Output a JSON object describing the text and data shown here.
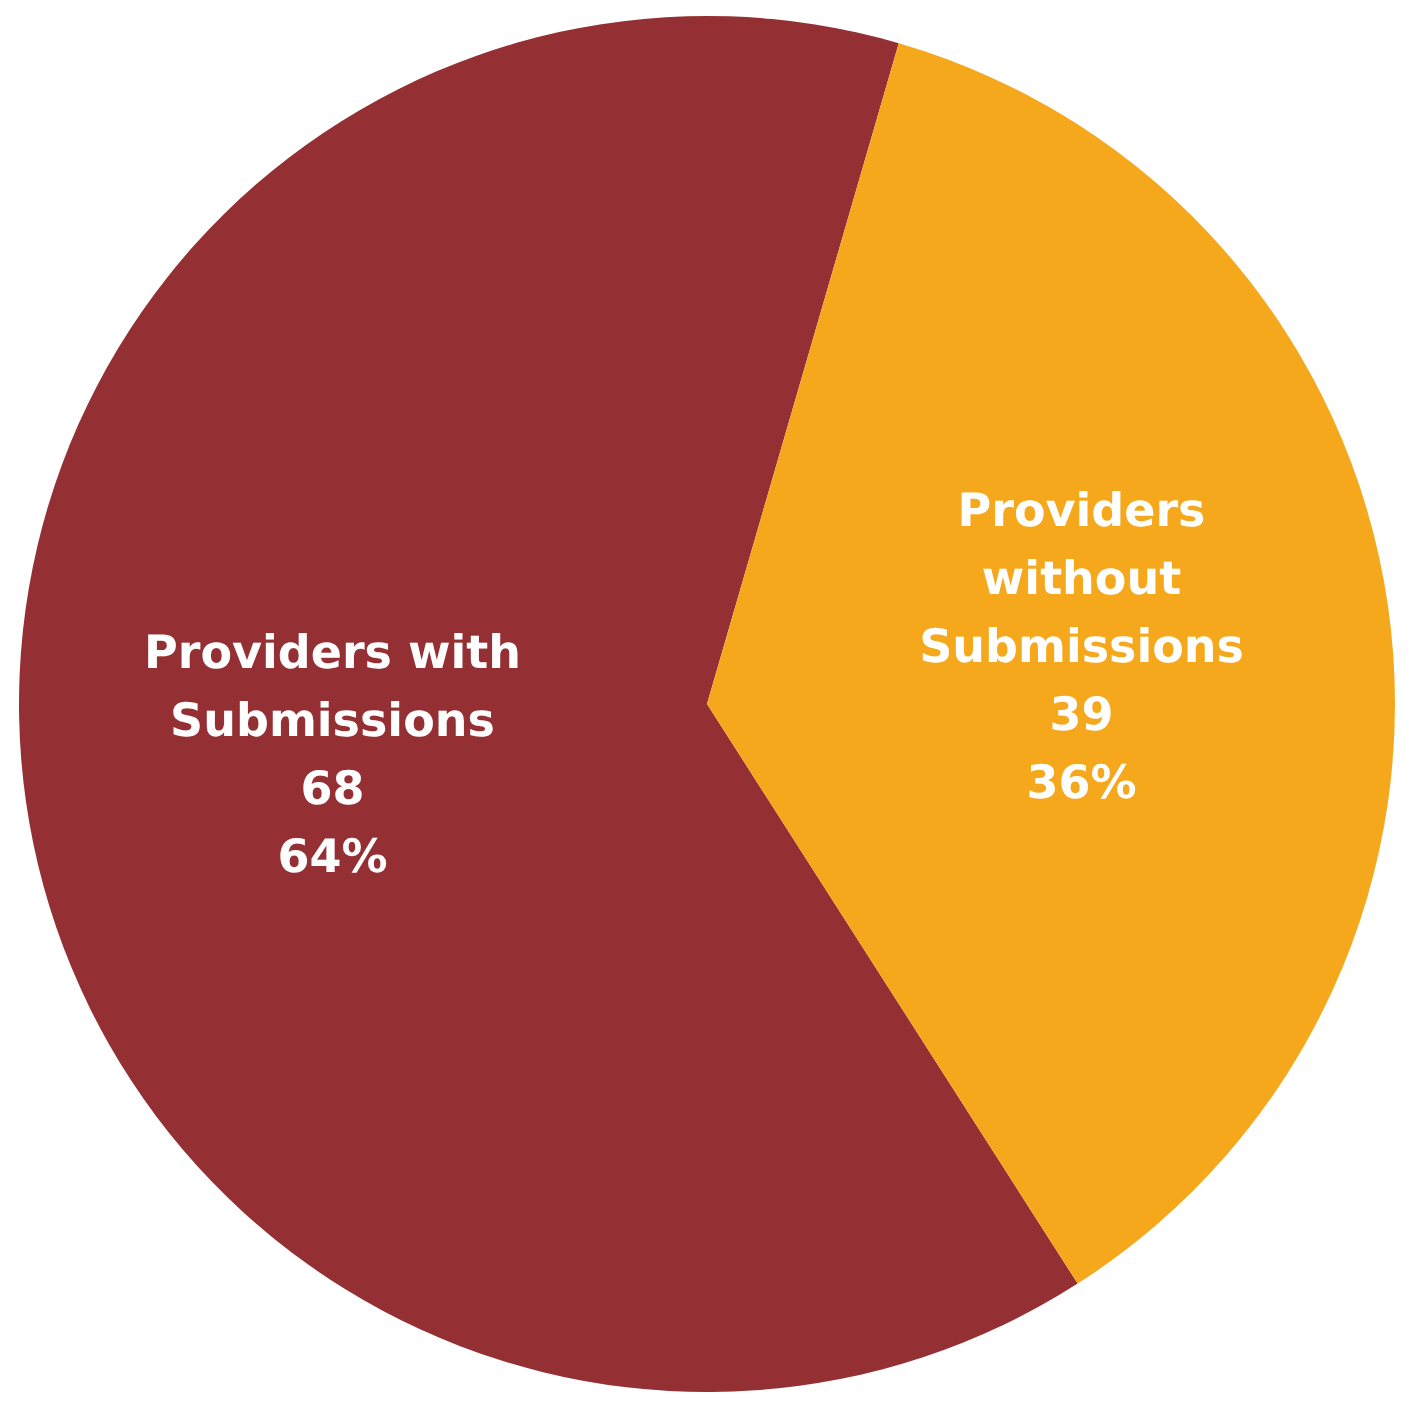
{
  "chart_data": {
    "type": "pie",
    "categories": [
      "Providers with Submissions",
      "Providers without Submissions"
    ],
    "values": [
      68,
      39
    ],
    "colors": [
      "#943034",
      "#f5a81c"
    ],
    "value_labels": [
      "68\n64%",
      "39\n36%"
    ]
  }
}
